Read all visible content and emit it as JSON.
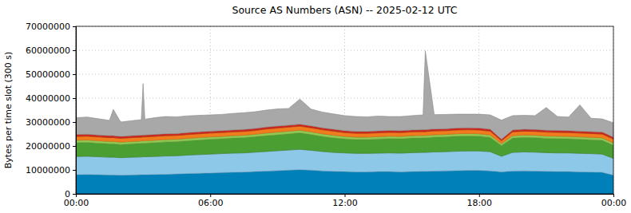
{
  "chart_data": {
    "type": "area",
    "title": "Source AS Numbers (ASN) -- 2025-02-12 UTC",
    "y_label": "Bytes per time slot (300 s)",
    "stacked": true,
    "grid": true,
    "x": [
      0,
      0.5,
      1,
      1.5,
      1.67,
      2,
      2.5,
      2.92,
      3,
      3.08,
      3.5,
      4,
      4.5,
      5,
      5.5,
      6,
      6.5,
      7,
      7.5,
      8,
      8.5,
      9,
      9.5,
      10,
      10.5,
      11,
      11.5,
      12,
      12.5,
      13,
      13.5,
      14,
      14.5,
      15,
      15.5,
      15.6,
      16,
      16.5,
      17,
      17.5,
      18,
      18.5,
      19,
      19.5,
      20,
      20.5,
      21,
      21.5,
      22,
      22.5,
      23,
      23.5,
      24
    ],
    "xlim": [
      0,
      24
    ],
    "xticks": [
      {
        "value": 0,
        "label": "00:00"
      },
      {
        "value": 6,
        "label": "06:00"
      },
      {
        "value": 12,
        "label": "12:00"
      },
      {
        "value": 18,
        "label": "18:00"
      },
      {
        "value": 24,
        "label": "00:00"
      }
    ],
    "ylim": [
      0,
      70000000
    ],
    "yticks": [
      0,
      10000000,
      20000000,
      30000000,
      40000000,
      50000000,
      60000000,
      70000000
    ],
    "series": [
      {
        "color": "#0080b8",
        "values": [
          8000000,
          8100000,
          8000000,
          7900000,
          7900000,
          7800000,
          7900000,
          8000000,
          8000000,
          8000000,
          8100000,
          8200000,
          8300000,
          8500000,
          8600000,
          8700000,
          8900000,
          9000000,
          9100000,
          9300000,
          9500000,
          9700000,
          9900000,
          10100000,
          9900000,
          9600000,
          9400000,
          9300000,
          9200000,
          9200000,
          9300000,
          9300000,
          9200000,
          9300000,
          9400000,
          9400000,
          9500000,
          9600000,
          9700000,
          9800000,
          9800000,
          9600000,
          9200000,
          9500000,
          9600000,
          9500000,
          9400000,
          9300000,
          9300000,
          9200000,
          9100000,
          9000000,
          7800000
        ]
      },
      {
        "color": "#8ec8e8",
        "values": [
          7600000,
          7600000,
          7500000,
          7400000,
          7400000,
          7300000,
          7400000,
          7400000,
          7500000,
          7500000,
          7500000,
          7600000,
          7600000,
          7700000,
          7800000,
          7900000,
          7900000,
          8000000,
          8000000,
          8100000,
          8200000,
          8300000,
          8400000,
          8500000,
          8300000,
          8100000,
          7900000,
          7800000,
          7700000,
          7700000,
          7700000,
          7800000,
          7800000,
          7900000,
          7900000,
          7900000,
          8000000,
          8000000,
          8100000,
          8100000,
          8100000,
          8000000,
          6500000,
          7800000,
          7900000,
          7900000,
          7800000,
          7800000,
          7800000,
          7700000,
          7700000,
          7600000,
          7000000
        ]
      },
      {
        "color": "#4a9e32",
        "values": [
          5800000,
          5800000,
          5700000,
          5600000,
          5600000,
          5500000,
          5600000,
          5700000,
          5700000,
          5700000,
          5800000,
          5900000,
          5900000,
          6000000,
          6100000,
          6200000,
          6200000,
          6300000,
          6400000,
          6500000,
          6600000,
          6700000,
          6800000,
          6900000,
          6600000,
          6300000,
          6100000,
          5900000,
          5800000,
          5800000,
          5900000,
          6000000,
          6000000,
          6100000,
          6100000,
          6100000,
          6200000,
          6200000,
          6300000,
          6300000,
          6200000,
          6000000,
          4500000,
          6000000,
          6100000,
          6100000,
          6000000,
          6000000,
          5900000,
          5900000,
          5800000,
          5800000,
          5500000
        ]
      },
      {
        "color": "#90c850",
        "values": [
          1000000,
          1000000,
          1000000,
          1000000,
          1000000,
          1000000,
          1000000,
          1000000,
          1000000,
          1000000,
          1000000,
          1000000,
          1000000,
          1000000,
          1000000,
          1000000,
          1000000,
          1000000,
          1000000,
          1000000,
          1100000,
          1100000,
          1100000,
          1100000,
          1100000,
          1100000,
          1100000,
          1000000,
          1000000,
          1000000,
          1000000,
          1000000,
          1000000,
          1000000,
          1000000,
          1000000,
          1000000,
          1000000,
          1000000,
          1000000,
          1000000,
          1000000,
          800000,
          1000000,
          1000000,
          1000000,
          1000000,
          1000000,
          1000000,
          1000000,
          1000000,
          1000000,
          1000000
        ]
      },
      {
        "color": "#f07c1c",
        "values": [
          1600000,
          1600000,
          1600000,
          1600000,
          1600000,
          1600000,
          1600000,
          1600000,
          1600000,
          1600000,
          1600000,
          1600000,
          1600000,
          1600000,
          1600000,
          1600000,
          1600000,
          1600000,
          1600000,
          1600000,
          1700000,
          1700000,
          1700000,
          1700000,
          1700000,
          1700000,
          1700000,
          1600000,
          1600000,
          1600000,
          1600000,
          1600000,
          1600000,
          1600000,
          1600000,
          1600000,
          1600000,
          1600000,
          1600000,
          1600000,
          1600000,
          1600000,
          1200000,
          1600000,
          1600000,
          1600000,
          1600000,
          1600000,
          1600000,
          1600000,
          1600000,
          1600000,
          1600000
        ]
      },
      {
        "color": "#d0281c",
        "values": [
          800000,
          800000,
          800000,
          800000,
          800000,
          800000,
          800000,
          800000,
          800000,
          800000,
          800000,
          800000,
          800000,
          800000,
          800000,
          800000,
          800000,
          800000,
          800000,
          800000,
          800000,
          800000,
          800000,
          800000,
          800000,
          800000,
          800000,
          800000,
          800000,
          800000,
          800000,
          800000,
          800000,
          800000,
          800000,
          800000,
          800000,
          800000,
          800000,
          800000,
          800000,
          800000,
          600000,
          800000,
          800000,
          800000,
          800000,
          800000,
          800000,
          800000,
          800000,
          800000,
          800000
        ]
      },
      {
        "color": "#a8a8a8",
        "values": [
          7000000,
          7200000,
          6800000,
          6400000,
          11000000,
          6000000,
          6300000,
          6500000,
          21500000,
          6600000,
          7000000,
          7200000,
          7000000,
          7000000,
          6900000,
          6800000,
          6800000,
          6900000,
          7000000,
          7000000,
          7100000,
          7200000,
          7000000,
          10500000,
          7000000,
          6600000,
          6400000,
          6300000,
          6200000,
          6100000,
          6200000,
          5800000,
          5900000,
          6000000,
          6200000,
          33000000,
          6000000,
          6000000,
          5800000,
          5700000,
          5800000,
          6000000,
          8000000,
          6000000,
          5800000,
          5800000,
          9500000,
          5800000,
          5700000,
          11000000,
          5600000,
          5500000,
          6000000
        ]
      }
    ]
  }
}
